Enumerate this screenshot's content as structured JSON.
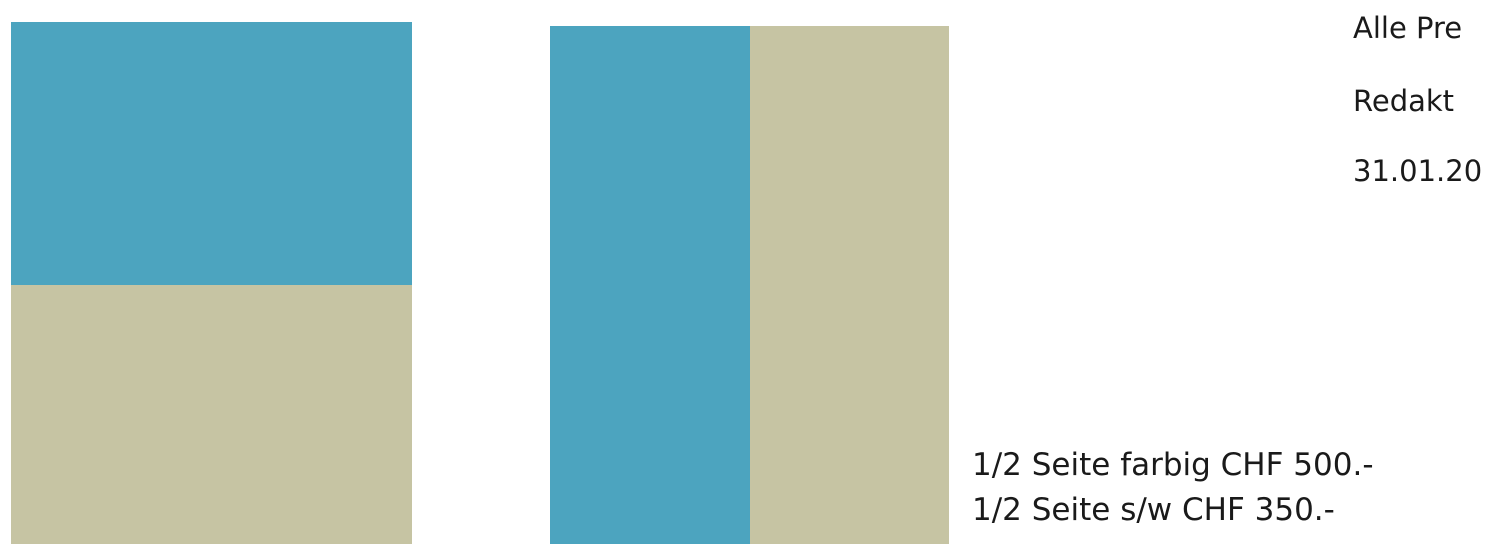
{
  "colors": {
    "teal": "#4ca4bf",
    "beige": "#c6c4a3",
    "background": "#ffffff",
    "text": "#1a1a1a"
  },
  "info_lines": [
    "Alle Pre",
    "Redakt",
    "31.01.20"
  ],
  "prices": [
    "1/2 Seite farbig CHF 500.-",
    "1/2 Seite s/w CHF 350.-"
  ]
}
